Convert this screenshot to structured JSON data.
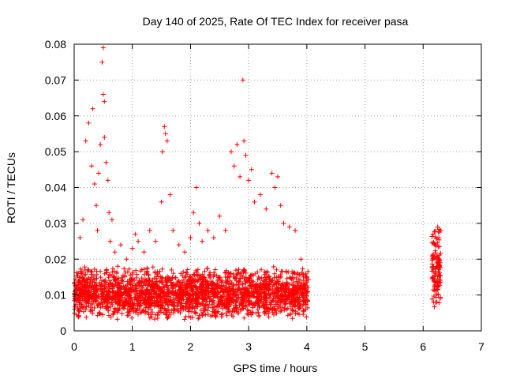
{
  "chart_data": {
    "type": "scatter",
    "title": "Day 140 of 2025, Rate Of TEC Index for receiver pasa",
    "xlabel": "GPS time / hours",
    "ylabel": "ROTI / TECUs",
    "xlim": [
      0,
      7
    ],
    "ylim": [
      0,
      0.08
    ],
    "x_ticks": [
      "0",
      "1",
      "2",
      "3",
      "4",
      "5",
      "6",
      "7"
    ],
    "y_ticks": [
      "0",
      "0.01",
      "0.02",
      "0.03",
      "0.04",
      "0.05",
      "0.06",
      "0.07",
      "0.08"
    ],
    "grid": true,
    "marker": "+",
    "color": "#ff0000",
    "clusters": [
      {
        "x_range": [
          0.0,
          4.03
        ],
        "typical_y_range": [
          0.003,
          0.018
        ],
        "count_estimate": 2400
      },
      {
        "x_range": [
          6.15,
          6.3
        ],
        "typical_y_range": [
          0.005,
          0.03
        ],
        "count_estimate": 120
      }
    ],
    "series": [
      {
        "x": [
          0.05,
          0.1,
          0.15,
          0.2,
          0.25,
          0.3,
          0.32,
          0.35,
          0.38,
          0.4,
          0.42,
          0.45,
          0.48,
          0.5,
          0.5,
          0.52,
          0.52,
          0.55,
          0.58,
          0.6,
          0.62,
          0.65,
          0.7,
          0.75,
          0.8,
          0.9,
          1.0,
          1.05,
          1.1,
          1.2,
          1.3,
          1.4,
          1.5,
          1.52,
          1.55,
          1.57,
          1.6,
          1.65,
          1.7,
          1.8,
          1.9,
          2.0,
          2.05,
          2.1,
          2.15,
          2.2,
          2.3,
          2.4,
          2.5,
          2.6,
          2.7,
          2.75,
          2.8,
          2.85,
          2.9,
          2.92,
          2.95,
          3.0,
          3.05,
          3.1,
          3.2,
          3.3,
          3.4,
          3.45,
          3.5,
          3.55,
          3.6,
          3.7,
          3.8,
          3.9,
          4.0,
          4.02,
          6.17,
          6.2,
          6.22,
          6.25,
          6.27,
          6.3
        ],
        "y": [
          0.012,
          0.026,
          0.031,
          0.053,
          0.058,
          0.046,
          0.062,
          0.041,
          0.035,
          0.028,
          0.044,
          0.052,
          0.075,
          0.079,
          0.066,
          0.064,
          0.054,
          0.047,
          0.042,
          0.033,
          0.025,
          0.031,
          0.022,
          0.018,
          0.024,
          0.02,
          0.023,
          0.027,
          0.025,
          0.022,
          0.028,
          0.025,
          0.036,
          0.05,
          0.057,
          0.055,
          0.053,
          0.038,
          0.028,
          0.024,
          0.022,
          0.026,
          0.033,
          0.04,
          0.03,
          0.025,
          0.028,
          0.026,
          0.032,
          0.028,
          0.05,
          0.046,
          0.052,
          0.043,
          0.07,
          0.053,
          0.049,
          0.042,
          0.045,
          0.036,
          0.038,
          0.034,
          0.044,
          0.04,
          0.043,
          0.035,
          0.03,
          0.029,
          0.028,
          0.02,
          0.015,
          0.012,
          0.027,
          0.024,
          0.02,
          0.029,
          0.026,
          0.028
        ]
      }
    ]
  }
}
